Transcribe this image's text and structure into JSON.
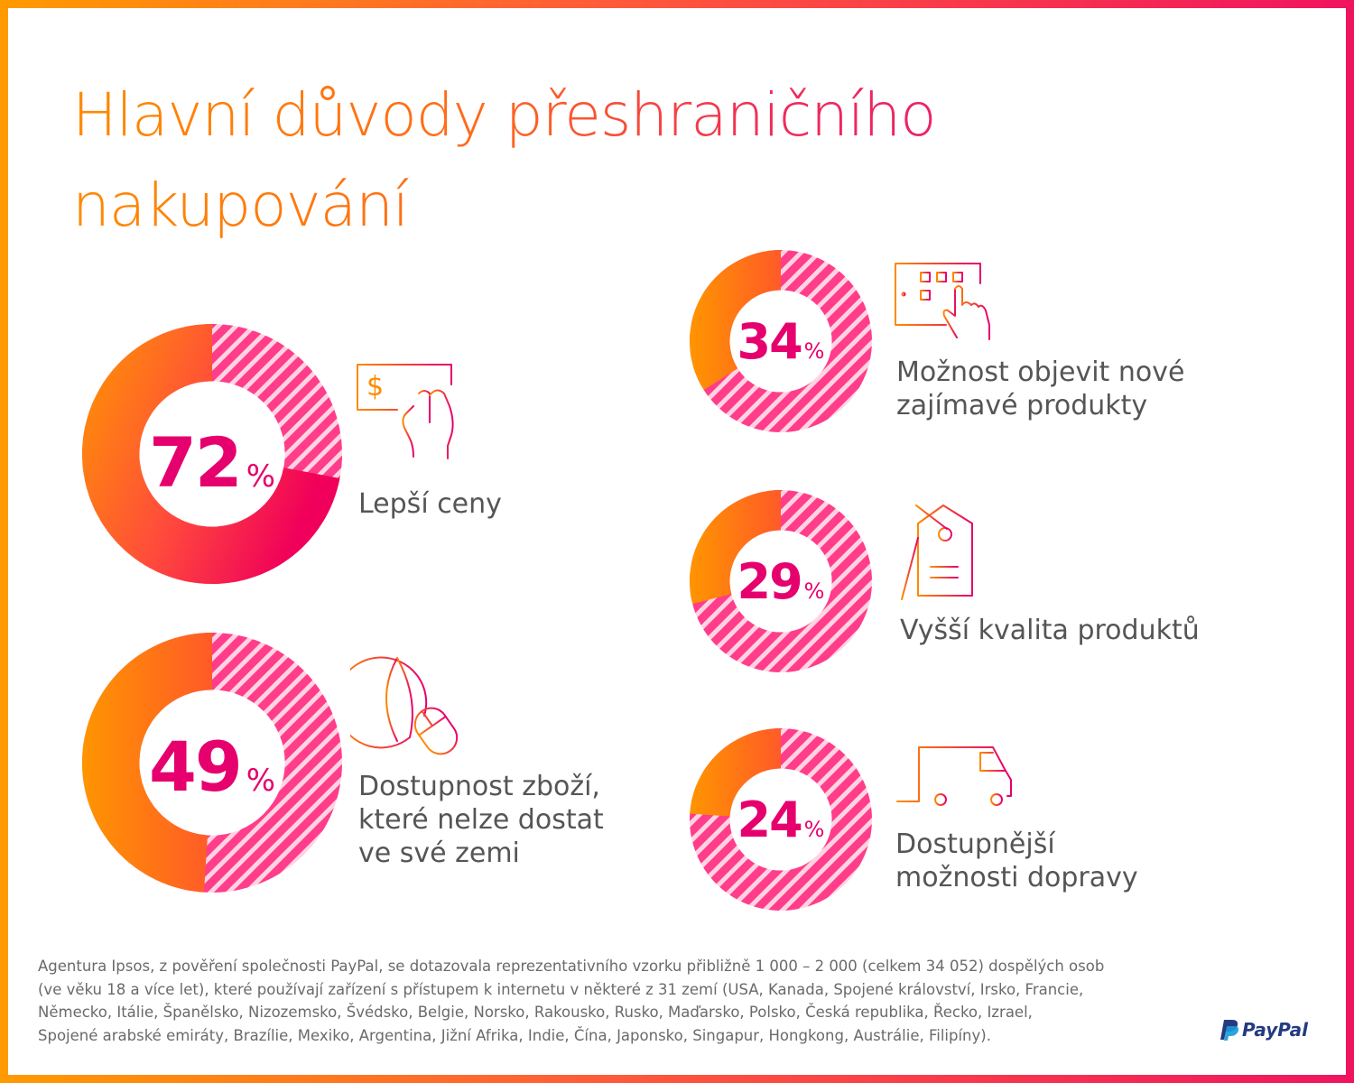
{
  "title": {
    "line1_orange": "Hlavní důvody",
    "line1_pink": "přeshraničního",
    "line2": "nakupování"
  },
  "colors": {
    "orange": "#ff8a00",
    "pink": "#e6006e",
    "accent_red": "#f0145f",
    "hatch_light": "#ffd8e4"
  },
  "chart_data": {
    "type": "donut",
    "title": "Hlavní důvody přeshraničního nakupování",
    "unit": "%",
    "categories": [
      "Lepší ceny",
      "Dostupnost zboží, které nelze dostat ve své zemi",
      "Možnost objevit nové zajímavé produkty",
      "Vyšší kvalita produktů",
      "Dostupnější možnosti dopravy"
    ],
    "values": [
      72,
      49,
      34,
      29,
      24
    ]
  },
  "items": [
    {
      "value": "72",
      "sign": "%",
      "label_lines": [
        "Lepší ceny"
      ],
      "icon": "cash-hand-icon"
    },
    {
      "value": "49",
      "sign": "%",
      "label_lines": [
        "Dostupnost zboží,",
        "které nelze dostat",
        "ve své zemi"
      ],
      "icon": "globe-mouse-icon"
    },
    {
      "value": "34",
      "sign": "%",
      "label_lines": [
        "Možnost objevit nové",
        "zajímavé produkty"
      ],
      "icon": "tablet-touch-icon"
    },
    {
      "value": "29",
      "sign": "%",
      "label_lines": [
        "Vyšší kvalita produktů"
      ],
      "icon": "price-tag-icon"
    },
    {
      "value": "24",
      "sign": "%",
      "label_lines": [
        "Dostupnější",
        "možnosti dopravy"
      ],
      "icon": "delivery-van-icon"
    }
  ],
  "footnote": {
    "lines": [
      "Agentura Ipsos, z pověření společnosti PayPal, se dotazovala reprezentativního vzorku přibližně 1 000 – 2 000 (celkem 34 052) dospělých osob",
      "(ve věku 18 a více let), které používají zařízení s přístupem k internetu v některé z 31 zemí  (USA, Kanada, Spojené království, Irsko, Francie,",
      "Německo, Itálie, Španělsko, Nizozemsko, Švédsko, Belgie, Norsko, Rakousko, Rusko, Maďarsko, Polsko, Česká republika, Řecko, Izrael,",
      "Spojené arabské emiráty, Brazílie, Mexiko, Argentina, Jižní Afrika, Indie, Čína, Japonsko, Singapur, Hongkong, Austrálie, Filipíny)."
    ]
  },
  "brand": {
    "name": "PayPal",
    "icon": "paypal-logo-icon"
  }
}
